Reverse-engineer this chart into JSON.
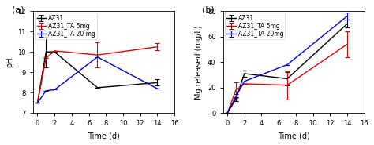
{
  "panel_a": {
    "title": "(a)",
    "xlabel": "Time (d)",
    "ylabel": "pH",
    "xlim": [
      -0.5,
      16
    ],
    "ylim": [
      7,
      12
    ],
    "yticks": [
      7,
      8,
      9,
      10,
      11,
      12
    ],
    "xticks": [
      0,
      2,
      4,
      6,
      8,
      10,
      12,
      14,
      16
    ],
    "series": [
      {
        "label": "AZ31",
        "color": "#000000",
        "x": [
          0,
          1,
          2,
          7,
          14
        ],
        "y": [
          7.5,
          10.0,
          10.0,
          8.25,
          8.5
        ],
        "yerr": [
          0,
          0.75,
          0,
          0,
          0.15
        ]
      },
      {
        "label": "AZ31_TA 5mg",
        "color": "#e00000",
        "x": [
          0,
          1,
          2,
          7,
          14
        ],
        "y": [
          7.5,
          9.7,
          10.05,
          9.85,
          10.25
        ],
        "yerr": [
          0,
          0,
          0,
          0.6,
          0.18
        ]
      },
      {
        "label": "AZ31_TA 20 mg",
        "color": "#0000dd",
        "x": [
          0,
          1,
          2,
          7,
          14
        ],
        "y": [
          7.5,
          8.1,
          8.15,
          9.75,
          8.2
        ],
        "yerr": [
          0,
          0,
          0,
          0,
          0
        ]
      }
    ]
  },
  "panel_b": {
    "title": "(b)",
    "xlabel": "Time (d)",
    "ylabel": "Mg released (mg/L)",
    "xlim": [
      -0.5,
      16
    ],
    "ylim": [
      0,
      80
    ],
    "yticks": [
      0,
      20,
      40,
      60,
      80
    ],
    "xticks": [
      0,
      2,
      4,
      6,
      8,
      10,
      12,
      14,
      16
    ],
    "series": [
      {
        "label": "AZ31",
        "color": "#000000",
        "x": [
          0,
          1,
          2,
          7,
          14
        ],
        "y": [
          0,
          11,
          31,
          27,
          70
        ],
        "yerr": [
          0,
          1.5,
          2.5,
          5,
          3
        ]
      },
      {
        "label": "AZ31_TA 5mg",
        "color": "#e00000",
        "x": [
          0,
          1,
          2,
          7,
          14
        ],
        "y": [
          0,
          18,
          23,
          22,
          54
        ],
        "yerr": [
          0,
          6,
          0,
          11,
          10
        ]
      },
      {
        "label": "AZ31_TA 20mg",
        "color": "#0000dd",
        "x": [
          0,
          1,
          2,
          7,
          14
        ],
        "y": [
          0,
          13,
          25,
          38,
          76
        ],
        "yerr": [
          0,
          2,
          0,
          0,
          3
        ]
      }
    ]
  },
  "bg_color": "#ffffff",
  "linewidth": 1.0,
  "capsize": 2,
  "elinewidth": 0.8,
  "capthick": 0.8,
  "tick_labelsize": 6,
  "axis_labelsize": 7,
  "legend_fontsize": 5.5,
  "panel_label_fontsize": 8
}
